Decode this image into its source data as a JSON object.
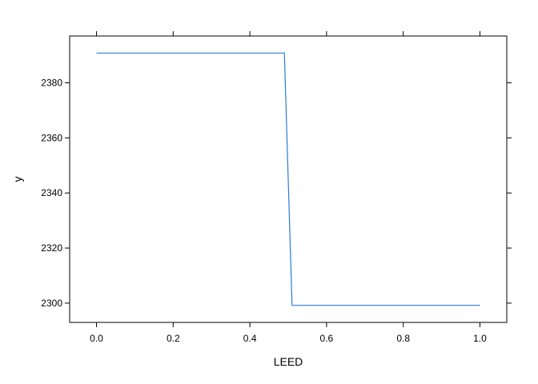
{
  "chart_data": {
    "type": "line",
    "xlabel": "LEED",
    "ylabel": "y",
    "xlim": [
      -0.07,
      1.07
    ],
    "ylim": [
      2293,
      2397
    ],
    "x_ticks": [
      0.0,
      0.2,
      0.4,
      0.6,
      0.8,
      1.0
    ],
    "x_tick_labels": [
      "0.0",
      "0.2",
      "0.4",
      "0.6",
      "0.8",
      "1.0"
    ],
    "y_ticks": [
      2300,
      2320,
      2340,
      2360,
      2380
    ],
    "y_tick_labels": [
      "2300",
      "2320",
      "2340",
      "2360",
      "2380"
    ],
    "grid": false,
    "series": [
      {
        "color": "#2b7bd9",
        "x": [
          0.0,
          0.49,
          0.51,
          1.0
        ],
        "y": [
          2390.8,
          2390.8,
          2299.2,
          2299.2
        ]
      }
    ]
  }
}
